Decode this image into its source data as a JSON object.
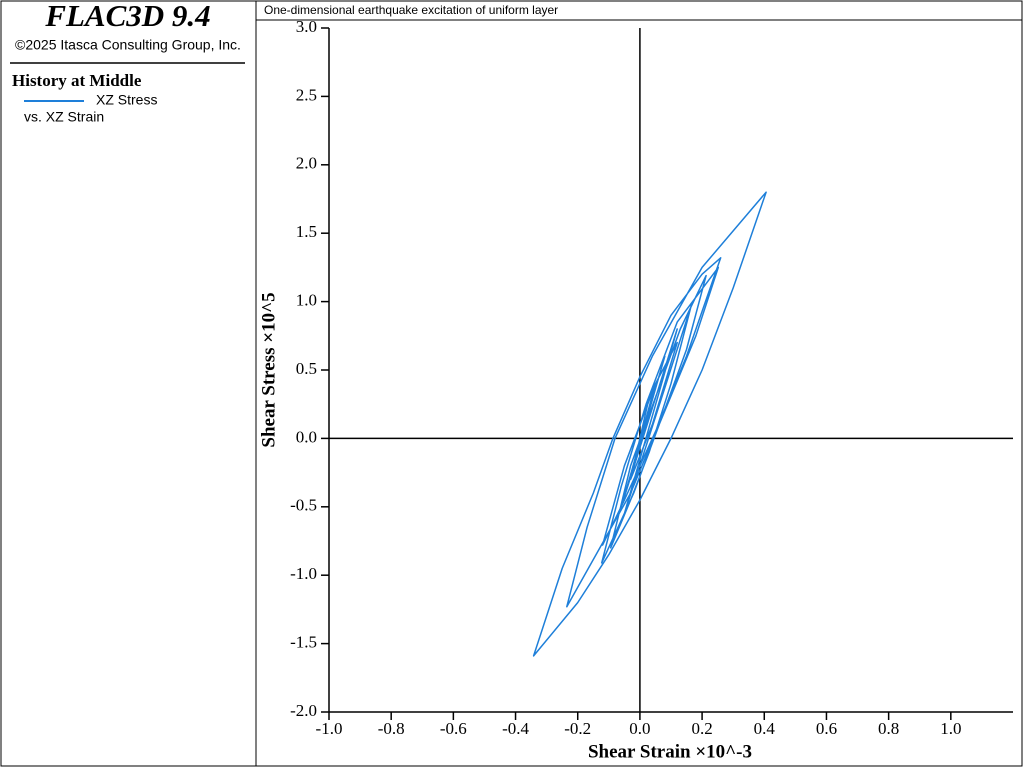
{
  "header": {
    "title": "FLAC3D 9.4",
    "copyright": "©2025 Itasca Consulting Group, Inc."
  },
  "legend_title": "History at Middle",
  "chart_data": {
    "type": "line",
    "title": "One-dimensional earthquake excitation of uniform layer",
    "x_label": "Shear Strain ×10^-3",
    "y_label": "Shear Stress ×10^5",
    "xlim": [
      -1.0,
      1.2
    ],
    "ylim": [
      -2.0,
      3.0
    ],
    "xticks": [
      {
        "value": -1.0,
        "label": "-1.0"
      },
      {
        "value": -0.8,
        "label": "-0.8"
      },
      {
        "value": -0.6,
        "label": "-0.6"
      },
      {
        "value": -0.4,
        "label": "-0.4"
      },
      {
        "value": -0.2,
        "label": "-0.2"
      },
      {
        "value": 0,
        "label": "0.0"
      },
      {
        "value": 0.2,
        "label": "0.2"
      },
      {
        "value": 0.4,
        "label": "0.4"
      },
      {
        "value": 0.6,
        "label": "0.6"
      },
      {
        "value": 0.8,
        "label": "0.8"
      },
      {
        "value": 1.0,
        "label": "1.0"
      }
    ],
    "yticks": [
      {
        "value": -2.0,
        "label": "-2.0"
      },
      {
        "value": -1.5,
        "label": "-1.5"
      },
      {
        "value": -1.0,
        "label": "-1.0"
      },
      {
        "value": -0.5,
        "label": "-0.5"
      },
      {
        "value": 0,
        "label": "0.0"
      },
      {
        "value": 0.5,
        "label": "0.5"
      },
      {
        "value": 1.0,
        "label": "1.0"
      },
      {
        "value": 1.5,
        "label": "1.5"
      },
      {
        "value": 2.0,
        "label": "2.0"
      },
      {
        "value": 2.5,
        "label": "2.5"
      },
      {
        "value": 3.0,
        "label": "3.0"
      }
    ],
    "series": [
      {
        "name": "XZ Stress",
        "x_name": "vs. XZ Strain",
        "color": "#1e7fd9",
        "x": [
          0,
          0.03,
          -0.02,
          0.05,
          -0.04,
          0.08,
          -0.06,
          0.12,
          -0.05,
          0.165,
          0.1,
          0.03,
          -0.03,
          -0.094,
          -0.03,
          0.05,
          0.13,
          0.213,
          0.15,
          0.07,
          -0.02,
          -0.123,
          -0.06,
          0.02,
          0.12,
          0.252,
          0.18,
          0.08,
          -0.03,
          -0.235,
          -0.17,
          -0.08,
          0.04,
          0.2,
          0.406,
          0.3,
          0.2,
          0.1,
          0.0,
          -0.1,
          -0.2,
          -0.342,
          -0.25,
          -0.15,
          -0.087,
          0.0,
          0.1,
          0.2,
          0.26,
          0.15,
          0.05,
          -0.05,
          -0.12,
          -0.05,
          0.05,
          0.12,
          0.04,
          -0.03,
          0.03,
          0.0
        ],
        "values": [
          0,
          0.3,
          -0.2,
          0.4,
          -0.35,
          0.6,
          -0.5,
          0.8,
          -0.55,
          0.97,
          0.4,
          -0.1,
          -0.45,
          -0.8,
          -0.2,
          0.3,
          0.8,
          1.19,
          0.65,
          0.15,
          -0.4,
          -0.91,
          -0.35,
          0.25,
          0.85,
          1.25,
          0.75,
          0.2,
          -0.4,
          -1.23,
          -0.65,
          0.0,
          0.6,
          1.25,
          1.8,
          1.1,
          0.5,
          0.0,
          -0.45,
          -0.85,
          -1.2,
          -1.59,
          -0.95,
          -0.4,
          0.0,
          0.45,
          0.9,
          1.2,
          1.32,
          0.6,
          0.05,
          -0.45,
          -0.78,
          -0.2,
          0.4,
          0.7,
          0.1,
          -0.3,
          0.2,
          0.0
        ]
      }
    ]
  }
}
